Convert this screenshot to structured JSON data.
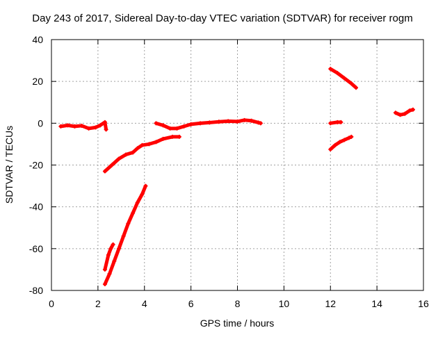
{
  "chart_data": {
    "type": "scatter",
    "title": "Day 243 of 2017, Sidereal Day-to-day VTEC variation (SDTVAR) for receiver rogm",
    "xlabel": "GPS time / hours",
    "ylabel": "SDTVAR / TECUs",
    "xlim": [
      0,
      16
    ],
    "ylim": [
      -80,
      40
    ],
    "xticks": [
      0,
      2,
      4,
      6,
      8,
      10,
      12,
      14,
      16
    ],
    "yticks": [
      -80,
      -60,
      -40,
      -20,
      0,
      20,
      40
    ],
    "grid": true,
    "marker": "plus",
    "color": "#ff0000",
    "segments": [
      [
        [
          0.4,
          -1.5
        ],
        [
          0.7,
          -1
        ],
        [
          1.0,
          -1.5
        ],
        [
          1.3,
          -1.2
        ],
        [
          1.6,
          -2.5
        ],
        [
          1.9,
          -2
        ],
        [
          2.1,
          -1
        ],
        [
          2.3,
          0.5
        ],
        [
          2.35,
          -3
        ]
      ],
      [
        [
          2.3,
          -23
        ],
        [
          2.6,
          -20
        ],
        [
          2.9,
          -17
        ],
        [
          3.2,
          -15
        ],
        [
          3.5,
          -14
        ],
        [
          3.7,
          -12
        ],
        [
          3.9,
          -10.5
        ],
        [
          4.2,
          -10
        ],
        [
          4.5,
          -9
        ],
        [
          4.8,
          -7.5
        ],
        [
          5.2,
          -6.5
        ],
        [
          5.5,
          -6.5
        ]
      ],
      [
        [
          2.3,
          -77
        ],
        [
          2.5,
          -72
        ],
        [
          2.7,
          -66
        ],
        [
          2.9,
          -60
        ],
        [
          3.1,
          -54
        ],
        [
          3.3,
          -48
        ],
        [
          3.5,
          -43
        ],
        [
          3.7,
          -38
        ],
        [
          3.9,
          -34
        ],
        [
          4.05,
          -30
        ]
      ],
      [
        [
          2.3,
          -70
        ],
        [
          2.45,
          -63
        ],
        [
          2.55,
          -60
        ],
        [
          2.65,
          -58
        ]
      ],
      [
        [
          4.5,
          0
        ],
        [
          4.8,
          -1
        ],
        [
          5.1,
          -2.5
        ],
        [
          5.4,
          -2.5
        ],
        [
          5.7,
          -1.5
        ],
        [
          6.0,
          -0.5
        ],
        [
          6.4,
          0
        ],
        [
          6.8,
          0.3
        ],
        [
          7.2,
          0.7
        ],
        [
          7.6,
          1
        ],
        [
          8.0,
          0.8
        ],
        [
          8.3,
          1.5
        ],
        [
          8.6,
          1.2
        ],
        [
          8.9,
          0.3
        ],
        [
          9.0,
          0
        ]
      ],
      [
        [
          12.0,
          26
        ],
        [
          12.3,
          24
        ],
        [
          12.6,
          21.5
        ],
        [
          12.9,
          19
        ],
        [
          13.1,
          17
        ]
      ],
      [
        [
          12.0,
          0
        ],
        [
          12.3,
          0.5
        ],
        [
          12.45,
          0.5
        ]
      ],
      [
        [
          12.0,
          -12.5
        ],
        [
          12.2,
          -10.5
        ],
        [
          12.4,
          -9
        ],
        [
          12.6,
          -8
        ],
        [
          12.8,
          -7
        ],
        [
          12.9,
          -6.5
        ]
      ],
      [
        [
          14.8,
          5
        ],
        [
          15.0,
          4
        ],
        [
          15.2,
          4.5
        ],
        [
          15.4,
          6
        ],
        [
          15.55,
          6.5
        ]
      ]
    ]
  }
}
